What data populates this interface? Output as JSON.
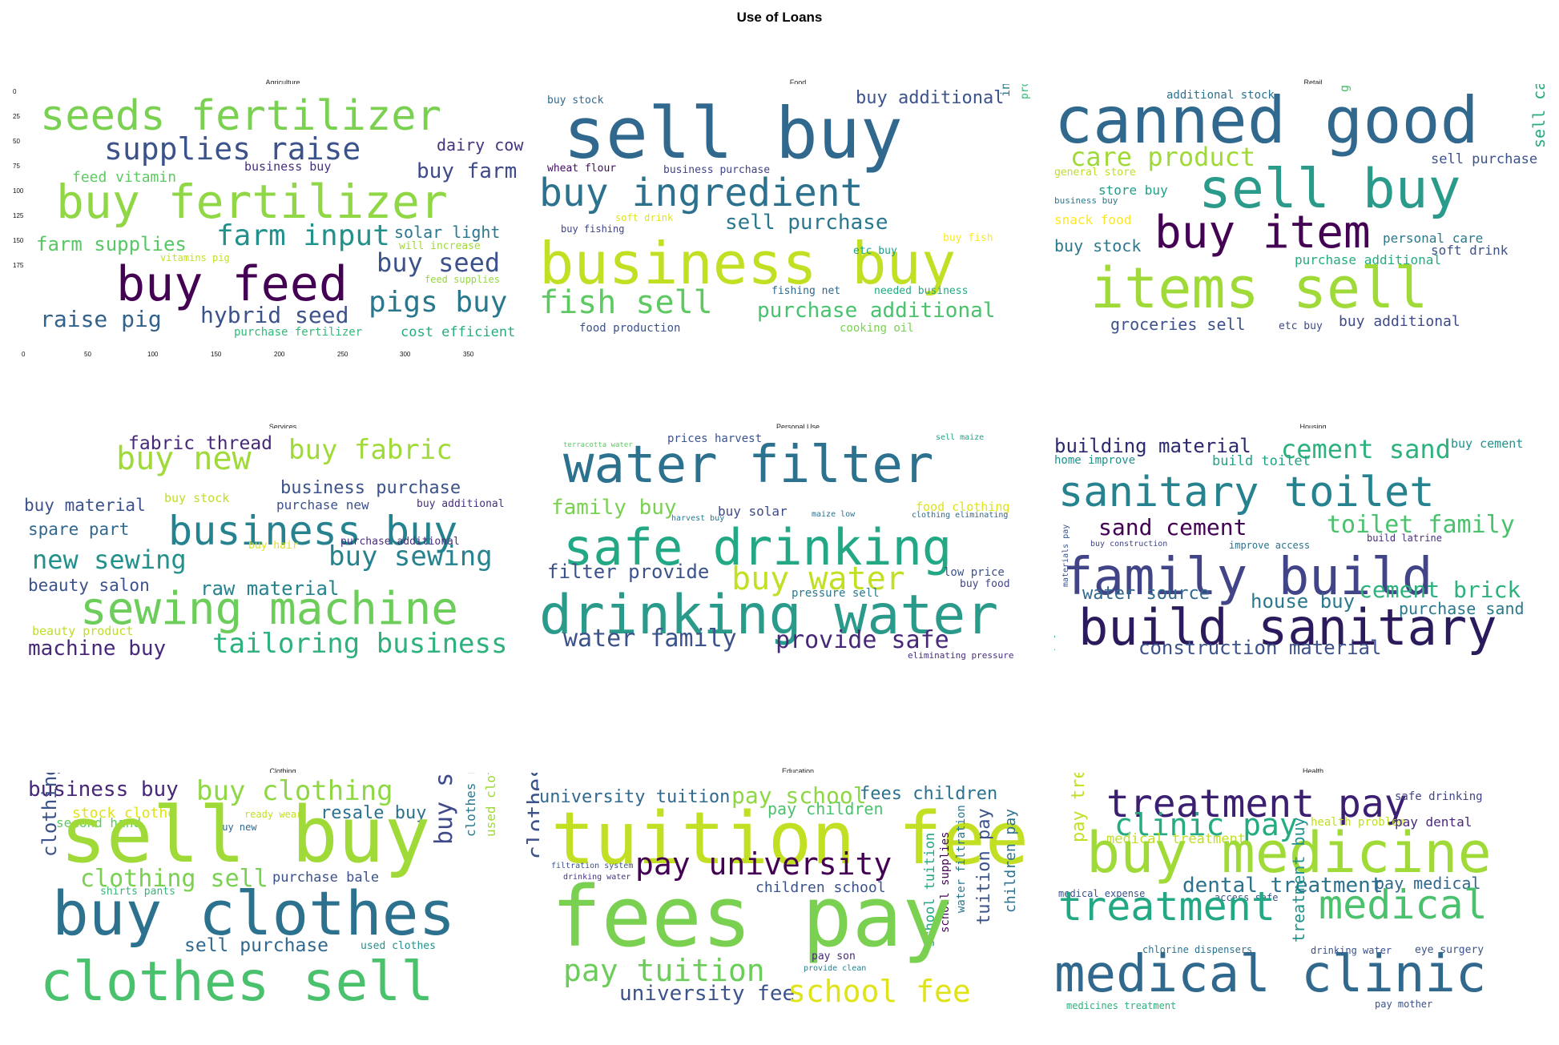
{
  "figure": {
    "title": "Use of Loans"
  },
  "panels": [
    {
      "title": "Agriculture",
      "axes": {
        "y_ticks": [
          "0",
          "25",
          "50",
          "75",
          "100",
          "125",
          "150",
          "175"
        ],
        "x_ticks": [
          "0",
          "50",
          "100",
          "150",
          "200",
          "250",
          "300",
          "350"
        ]
      },
      "words": [
        {
          "text": "seeds fertilizer",
          "color": "#7ad151"
        },
        {
          "text": "supplies raise",
          "color": "#3b528b"
        },
        {
          "text": "dairy cow",
          "color": "#46337e"
        },
        {
          "text": "business buy",
          "color": "#472f7d"
        },
        {
          "text": "buy farm",
          "color": "#3e4a89"
        },
        {
          "text": "feed vitamin",
          "color": "#5ec962"
        },
        {
          "text": "buy fertilizer",
          "color": "#8fd744"
        },
        {
          "text": "farm supplies",
          "color": "#58c765"
        },
        {
          "text": "farm input",
          "color": "#21918c"
        },
        {
          "text": "solar light",
          "color": "#2a788e"
        },
        {
          "text": "will increase",
          "color": "#a0da39"
        },
        {
          "text": "vitamins pig",
          "color": "#c2df23"
        },
        {
          "text": "buy seed",
          "color": "#3b528b"
        },
        {
          "text": "feed supplies",
          "color": "#95d840"
        },
        {
          "text": "buy feed",
          "color": "#440154"
        },
        {
          "text": "pigs buy",
          "color": "#2a788e"
        },
        {
          "text": "raise pig",
          "color": "#33638d"
        },
        {
          "text": "hybrid seed",
          "color": "#3b528b"
        },
        {
          "text": "purchase fertilizer",
          "color": "#35b779"
        },
        {
          "text": "cost efficient",
          "color": "#25ab82"
        }
      ]
    },
    {
      "title": "Food",
      "words": [
        {
          "text": "buy stock",
          "color": "#31688e"
        },
        {
          "text": "sell buy",
          "color": "#31688e"
        },
        {
          "text": "buy additional",
          "color": "#3b528b"
        },
        {
          "text": "wheat flour",
          "color": "#3e0d5f"
        },
        {
          "text": "business purchase",
          "color": "#414487"
        },
        {
          "text": "buy ingredient",
          "color": "#2c728e"
        },
        {
          "text": "ingredients food",
          "color": "#2a788e"
        },
        {
          "text": "production business",
          "color": "#35b779"
        },
        {
          "text": "soft drink",
          "color": "#dfe318"
        },
        {
          "text": "sell purchase",
          "color": "#2a788e"
        },
        {
          "text": "buy fishing",
          "color": "#414487"
        },
        {
          "text": "business buy",
          "color": "#c2df23"
        },
        {
          "text": "buy fish",
          "color": "#fde725"
        },
        {
          "text": "etc buy",
          "color": "#1f9e89"
        },
        {
          "text": "fish sell",
          "color": "#5ec962"
        },
        {
          "text": "fishing net",
          "color": "#31688e"
        },
        {
          "text": "needed business",
          "color": "#22a884"
        },
        {
          "text": "purchase additional",
          "color": "#4ac16d"
        },
        {
          "text": "food production",
          "color": "#3b528b"
        },
        {
          "text": "cooking oil",
          "color": "#7ad151"
        }
      ]
    },
    {
      "title": "Retail",
      "words": [
        {
          "text": "additional stock",
          "color": "#2c728e"
        },
        {
          "text": "canned good",
          "color": "#31688e"
        },
        {
          "text": "groceries buy",
          "color": "#4ac16d"
        },
        {
          "text": "care product",
          "color": "#a0da39"
        },
        {
          "text": "sell purchase",
          "color": "#3b528b"
        },
        {
          "text": "general store",
          "color": "#bddf26"
        },
        {
          "text": "store buy",
          "color": "#1f9e89"
        },
        {
          "text": "business buy",
          "color": "#2a788e"
        },
        {
          "text": "sell buy",
          "color": "#2a9a8a"
        },
        {
          "text": "snack food",
          "color": "#fde725"
        },
        {
          "text": "sell canned",
          "color": "#25ab82"
        },
        {
          "text": "buy item",
          "color": "#440154"
        },
        {
          "text": "personal care",
          "color": "#2a788e"
        },
        {
          "text": "buy stock",
          "color": "#2a788e"
        },
        {
          "text": "soft drink",
          "color": "#3b528b"
        },
        {
          "text": "purchase additional",
          "color": "#25ab82"
        },
        {
          "text": "items sell",
          "color": "#a0da39"
        },
        {
          "text": "groceries sell",
          "color": "#3b528b"
        },
        {
          "text": "etc buy",
          "color": "#3e4a89"
        },
        {
          "text": "buy additional",
          "color": "#3e4a89"
        }
      ]
    },
    {
      "title": "Services",
      "words": [
        {
          "text": "fabric thread",
          "color": "#482878"
        },
        {
          "text": "buy fabric",
          "color": "#a0da39"
        },
        {
          "text": "buy new",
          "color": "#a0da39"
        },
        {
          "text": "business purchase",
          "color": "#3b528b"
        },
        {
          "text": "buy material",
          "color": "#3b528b"
        },
        {
          "text": "buy stock",
          "color": "#bddf26"
        },
        {
          "text": "purchase new",
          "color": "#3b528b"
        },
        {
          "text": "buy additional",
          "color": "#472f7d"
        },
        {
          "text": "spare part",
          "color": "#31688e"
        },
        {
          "text": "business buy",
          "color": "#26828e"
        },
        {
          "text": "buy hair",
          "color": "#dfe318"
        },
        {
          "text": "purchase additional",
          "color": "#472f7d"
        },
        {
          "text": "new sewing",
          "color": "#21918c"
        },
        {
          "text": "buy sewing",
          "color": "#26828e"
        },
        {
          "text": "beauty salon",
          "color": "#3b528b"
        },
        {
          "text": "raw material",
          "color": "#26828e"
        },
        {
          "text": "sewing machine",
          "color": "#6ccd5a"
        },
        {
          "text": "beauty product",
          "color": "#bddf26"
        },
        {
          "text": "machine buy",
          "color": "#482878"
        },
        {
          "text": "tailoring business",
          "color": "#2db27d"
        }
      ]
    },
    {
      "title": "Personal Use",
      "words": [
        {
          "text": "terracotta water",
          "color": "#5ec962"
        },
        {
          "text": "prices harvest",
          "color": "#3b528b"
        },
        {
          "text": "sell maize",
          "color": "#20a386"
        },
        {
          "text": "water filter",
          "color": "#2c728e"
        },
        {
          "text": "family buy",
          "color": "#7ad151"
        },
        {
          "text": "buy solar",
          "color": "#3e4a89"
        },
        {
          "text": "food clothing",
          "color": "#dfe318"
        },
        {
          "text": "harvest buy",
          "color": "#2a788e"
        },
        {
          "text": "maize low",
          "color": "#2c728e"
        },
        {
          "text": "clothing eliminating",
          "color": "#31688e"
        },
        {
          "text": "safe drinking",
          "color": "#22a884"
        },
        {
          "text": "filter provide",
          "color": "#3b528b"
        },
        {
          "text": "buy water",
          "color": "#c2df23"
        },
        {
          "text": "low price",
          "color": "#3b528b"
        },
        {
          "text": "buy food",
          "color": "#414487"
        },
        {
          "text": "pressure sell",
          "color": "#2a788e"
        },
        {
          "text": "drinking water",
          "color": "#2a9a8a"
        },
        {
          "text": "water family",
          "color": "#3b528b"
        },
        {
          "text": "provide safe",
          "color": "#482878"
        },
        {
          "text": "eliminating pressure",
          "color": "#472f7d"
        }
      ]
    },
    {
      "title": "Housing",
      "words": [
        {
          "text": "building material",
          "color": "#2c2a6e"
        },
        {
          "text": "cement sand",
          "color": "#2db27d"
        },
        {
          "text": "buy cement",
          "color": "#21918c"
        },
        {
          "text": "home improve",
          "color": "#21918c"
        },
        {
          "text": "build toilet",
          "color": "#20a386"
        },
        {
          "text": "sanitary toilet",
          "color": "#26828e"
        },
        {
          "text": "sand cement",
          "color": "#440154"
        },
        {
          "text": "toilet family",
          "color": "#4ac16d"
        },
        {
          "text": "buy construction",
          "color": "#414487"
        },
        {
          "text": "improve access",
          "color": "#2c728e"
        },
        {
          "text": "build latrine",
          "color": "#472f7d"
        },
        {
          "text": "family build",
          "color": "#414487"
        },
        {
          "text": "materials pay",
          "color": "#3b528b"
        },
        {
          "text": "pay construction",
          "color": "#22a884"
        },
        {
          "text": "water source",
          "color": "#31688e"
        },
        {
          "text": "cement brick",
          "color": "#2db27d"
        },
        {
          "text": "house buy",
          "color": "#2a788e"
        },
        {
          "text": "purchase sand",
          "color": "#2a788e"
        },
        {
          "text": "build sanitary",
          "color": "#2c1b5c"
        },
        {
          "text": "construction material",
          "color": "#3b528b"
        }
      ]
    },
    {
      "title": "Clothing",
      "words": [
        {
          "text": "business buy",
          "color": "#482878"
        },
        {
          "text": "buy clothing",
          "color": "#8fd744"
        },
        {
          "text": "stock clothe",
          "color": "#dfe318"
        },
        {
          "text": "second hand",
          "color": "#5ec962"
        },
        {
          "text": "clothing buy",
          "color": "#3b528b"
        },
        {
          "text": "resale buy",
          "color": "#2c728e"
        },
        {
          "text": "buy stock",
          "color": "#3e4a89"
        },
        {
          "text": "clothes resale",
          "color": "#2a788e"
        },
        {
          "text": "used clothing",
          "color": "#a0da39"
        },
        {
          "text": "clothes buy",
          "color": "#3b528b"
        },
        {
          "text": "ready wear",
          "color": "#c2df23"
        },
        {
          "text": "buy new",
          "color": "#31688e"
        },
        {
          "text": "sell buy",
          "color": "#a0da39"
        },
        {
          "text": "clothing sell",
          "color": "#7ad151"
        },
        {
          "text": "purchase bale",
          "color": "#3b528b"
        },
        {
          "text": "shirts pants",
          "color": "#35b779"
        },
        {
          "text": "buy clothes",
          "color": "#2c728e"
        },
        {
          "text": "sell purchase",
          "color": "#31688e"
        },
        {
          "text": "used clothes",
          "color": "#21918c"
        },
        {
          "text": "clothes sell",
          "color": "#4ac16d"
        }
      ]
    },
    {
      "title": "Education",
      "words": [
        {
          "text": "university tuition",
          "color": "#31688e"
        },
        {
          "text": "pay school",
          "color": "#8fd744"
        },
        {
          "text": "fees children",
          "color": "#2c728e"
        },
        {
          "text": "pay children",
          "color": "#4ac16d"
        },
        {
          "text": "tuition fee",
          "color": "#c2df23"
        },
        {
          "text": "filtration system",
          "color": "#3b528b"
        },
        {
          "text": "drinking water",
          "color": "#46337e"
        },
        {
          "text": "pay university",
          "color": "#440154"
        },
        {
          "text": "children school",
          "color": "#3b528b"
        },
        {
          "text": "school tuition",
          "color": "#22a884"
        },
        {
          "text": "school supplies",
          "color": "#440154"
        },
        {
          "text": "water filtration",
          "color": "#2a788e"
        },
        {
          "text": "tuition pay",
          "color": "#3b528b"
        },
        {
          "text": "children pay",
          "color": "#2c728e"
        },
        {
          "text": "fees pay",
          "color": "#7ad151"
        },
        {
          "text": "pay son",
          "color": "#482878"
        },
        {
          "text": "provide clean",
          "color": "#26828e"
        },
        {
          "text": "pay tuition",
          "color": "#6ccd5a"
        },
        {
          "text": "university fee",
          "color": "#3b528b"
        },
        {
          "text": "school fee",
          "color": "#dfe318"
        }
      ]
    },
    {
      "title": "Health",
      "words": [
        {
          "text": "pay treatment",
          "color": "#c2df23"
        },
        {
          "text": "treatment pay",
          "color": "#3b1f70"
        },
        {
          "text": "safe drinking",
          "color": "#414487"
        },
        {
          "text": "clinic pay",
          "color": "#25ab82"
        },
        {
          "text": "health problem",
          "color": "#bddf26"
        },
        {
          "text": "pay dental",
          "color": "#482878"
        },
        {
          "text": "medical treatment",
          "color": "#c2df23"
        },
        {
          "text": "buy medicine",
          "color": "#a0da39"
        },
        {
          "text": "medical expense",
          "color": "#3b528b"
        },
        {
          "text": "access safe",
          "color": "#3b528b"
        },
        {
          "text": "dental treatment",
          "color": "#2c728e"
        },
        {
          "text": "pay medical",
          "color": "#31688e"
        },
        {
          "text": "treatment",
          "color": "#22a884"
        },
        {
          "text": "medical",
          "color": "#4ac16d"
        },
        {
          "text": "treatment buy",
          "color": "#21918c"
        },
        {
          "text": "chlorine dispensers",
          "color": "#2c728e"
        },
        {
          "text": "drinking water",
          "color": "#3b528b"
        },
        {
          "text": "eye surgery",
          "color": "#3b528b"
        },
        {
          "text": "medical clinic",
          "color": "#31688e"
        },
        {
          "text": "medicines treatment",
          "color": "#2db27d"
        },
        {
          "text": "pay mother",
          "color": "#3b528b"
        }
      ]
    }
  ]
}
